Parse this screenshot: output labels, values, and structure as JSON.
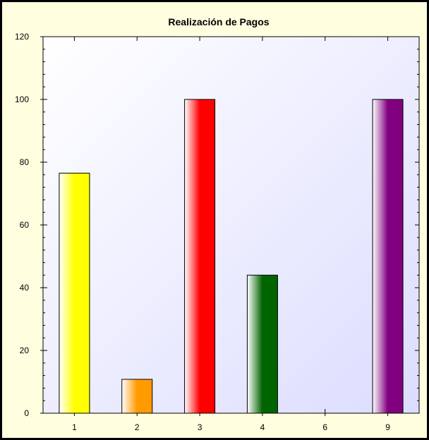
{
  "chart_data": {
    "type": "bar",
    "title": "Realización de Pagos",
    "xlabel": "",
    "ylabel": "",
    "categories": [
      "1",
      "2",
      "3",
      "4",
      "6",
      "9"
    ],
    "values": [
      76.5,
      10.8,
      100,
      44,
      0,
      100
    ],
    "ylim": [
      0,
      120
    ],
    "yticks": [
      0,
      20,
      40,
      60,
      80,
      100,
      120
    ],
    "grid": false,
    "legend": "none",
    "colors": [
      "#ffff00",
      "#ff9a00",
      "#ff0000",
      "#006400",
      "#ffffff",
      "#800080"
    ],
    "frame_background": "#ffffe0",
    "plot_background": [
      "#ffffff",
      "#dcdcff"
    ]
  }
}
